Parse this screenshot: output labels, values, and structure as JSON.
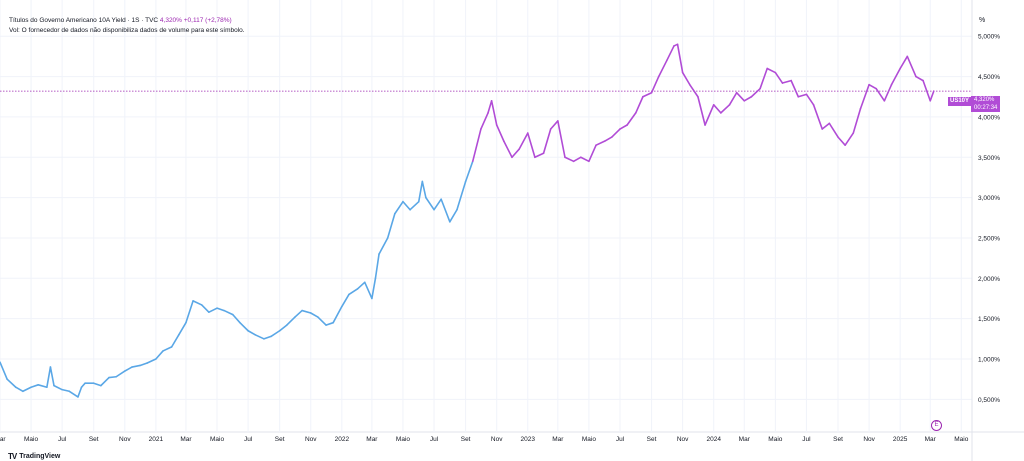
{
  "legend": {
    "title": "Títulos do Governo Americano 10A Yield · 1S · TVC",
    "price": "4,320%",
    "change": "+0,117 (+2,78%)",
    "volume_note": "Vol: O fornecedor de dados não disponibiliza dados de volume para este símbolo."
  },
  "scale_unit": "%",
  "price_tag": {
    "symbol": "US10Y",
    "value": "4,320%",
    "countdown": "00:27:34"
  },
  "branding": {
    "logo_mark": "TV",
    "name": "TradingView"
  },
  "event_icon": "E",
  "colors": {
    "line_early": "#5aa7e6",
    "line_late": "#b14cd6",
    "price_line": "#9c27b0",
    "grid": "#f0f3fa"
  },
  "chart_data": {
    "type": "line",
    "title": "Títulos do Governo Americano 10A Yield · 1S · TVC",
    "ylabel": "%",
    "ylim": [
      0.12,
      5.35
    ],
    "xlim": [
      "2020-03-01",
      "2025-05-22"
    ],
    "y_ticks": [
      "0,500%",
      "1,000%",
      "1,500%",
      "2,000%",
      "2,500%",
      "3,000%",
      "3,500%",
      "4,000%",
      "4,500%",
      "5,000%"
    ],
    "y_tick_values": [
      0.5,
      1.0,
      1.5,
      2.0,
      2.5,
      3.0,
      3.5,
      4.0,
      4.5,
      5.0
    ],
    "x_ticks": [
      {
        "label": "Mar",
        "date": "2020-03-01"
      },
      {
        "label": "Maio",
        "date": "2020-05-01"
      },
      {
        "label": "Jul",
        "date": "2020-07-01"
      },
      {
        "label": "Set",
        "date": "2020-09-01"
      },
      {
        "label": "Nov",
        "date": "2020-11-01"
      },
      {
        "label": "2021",
        "date": "2021-01-01"
      },
      {
        "label": "Mar",
        "date": "2021-03-01"
      },
      {
        "label": "Maio",
        "date": "2021-05-01"
      },
      {
        "label": "Jul",
        "date": "2021-07-01"
      },
      {
        "label": "Set",
        "date": "2021-09-01"
      },
      {
        "label": "Nov",
        "date": "2021-11-01"
      },
      {
        "label": "2022",
        "date": "2022-01-01"
      },
      {
        "label": "Mar",
        "date": "2022-03-01"
      },
      {
        "label": "Maio",
        "date": "2022-05-01"
      },
      {
        "label": "Jul",
        "date": "2022-07-01"
      },
      {
        "label": "Set",
        "date": "2022-09-01"
      },
      {
        "label": "Nov",
        "date": "2022-11-01"
      },
      {
        "label": "2023",
        "date": "2023-01-01"
      },
      {
        "label": "Mar",
        "date": "2023-03-01"
      },
      {
        "label": "Maio",
        "date": "2023-05-01"
      },
      {
        "label": "Jul",
        "date": "2023-07-01"
      },
      {
        "label": "Set",
        "date": "2023-09-01"
      },
      {
        "label": "Nov",
        "date": "2023-11-01"
      },
      {
        "label": "2024",
        "date": "2024-01-01"
      },
      {
        "label": "Mar",
        "date": "2024-03-01"
      },
      {
        "label": "Maio",
        "date": "2024-05-01"
      },
      {
        "label": "Jul",
        "date": "2024-07-01"
      },
      {
        "label": "Set",
        "date": "2024-09-01"
      },
      {
        "label": "Nov",
        "date": "2024-11-01"
      },
      {
        "label": "2025",
        "date": "2025-01-01"
      },
      {
        "label": "Mar",
        "date": "2025-03-01"
      },
      {
        "label": "Maio",
        "date": "2025-05-01"
      }
    ],
    "current_value": 4.32,
    "x": [
      "2020-03-01",
      "2020-03-15",
      "2020-04-01",
      "2020-04-15",
      "2020-05-01",
      "2020-05-15",
      "2020-06-01",
      "2020-06-08",
      "2020-06-15",
      "2020-07-01",
      "2020-07-15",
      "2020-08-01",
      "2020-08-08",
      "2020-08-15",
      "2020-09-01",
      "2020-09-15",
      "2020-10-01",
      "2020-10-15",
      "2020-11-01",
      "2020-11-15",
      "2020-12-01",
      "2020-12-15",
      "2021-01-01",
      "2021-01-15",
      "2021-02-01",
      "2021-02-15",
      "2021-03-01",
      "2021-03-15",
      "2021-04-01",
      "2021-04-15",
      "2021-05-01",
      "2021-05-15",
      "2021-06-01",
      "2021-06-15",
      "2021-07-01",
      "2021-07-15",
      "2021-08-01",
      "2021-08-15",
      "2021-09-01",
      "2021-09-15",
      "2021-10-01",
      "2021-10-15",
      "2021-11-01",
      "2021-11-15",
      "2021-12-01",
      "2021-12-15",
      "2022-01-01",
      "2022-01-15",
      "2022-02-01",
      "2022-02-15",
      "2022-03-01",
      "2022-03-08",
      "2022-03-15",
      "2022-04-01",
      "2022-04-15",
      "2022-05-01",
      "2022-05-15",
      "2022-06-01",
      "2022-06-08",
      "2022-06-15",
      "2022-07-01",
      "2022-07-15",
      "2022-08-01",
      "2022-08-15",
      "2022-09-01",
      "2022-09-15",
      "2022-10-01",
      "2022-10-15",
      "2022-10-22",
      "2022-11-01",
      "2022-11-15",
      "2022-12-01",
      "2022-12-15",
      "2023-01-01",
      "2023-01-15",
      "2023-02-01",
      "2023-02-15",
      "2023-03-01",
      "2023-03-15",
      "2023-04-01",
      "2023-04-15",
      "2023-05-01",
      "2023-05-15",
      "2023-06-01",
      "2023-06-15",
      "2023-07-01",
      "2023-07-15",
      "2023-08-01",
      "2023-08-15",
      "2023-09-01",
      "2023-09-15",
      "2023-10-01",
      "2023-10-15",
      "2023-10-22",
      "2023-11-01",
      "2023-11-15",
      "2023-12-01",
      "2023-12-15",
      "2024-01-01",
      "2024-01-15",
      "2024-02-01",
      "2024-02-15",
      "2024-03-01",
      "2024-03-15",
      "2024-04-01",
      "2024-04-15",
      "2024-05-01",
      "2024-05-15",
      "2024-06-01",
      "2024-06-15",
      "2024-07-01",
      "2024-07-15",
      "2024-08-01",
      "2024-08-15",
      "2024-09-01",
      "2024-09-15",
      "2024-10-01",
      "2024-10-15",
      "2024-11-01",
      "2024-11-15",
      "2024-12-01",
      "2024-12-15",
      "2025-01-01",
      "2025-01-15",
      "2025-02-01",
      "2025-02-15",
      "2025-03-01",
      "2025-03-08"
    ],
    "series": [
      {
        "values": [
          0.96,
          0.75,
          0.65,
          0.6,
          0.65,
          0.68,
          0.65,
          0.9,
          0.67,
          0.62,
          0.6,
          0.53,
          0.65,
          0.7,
          0.7,
          0.67,
          0.77,
          0.78,
          0.85,
          0.9,
          0.92,
          0.95,
          1.0,
          1.1,
          1.15,
          1.3,
          1.45,
          1.72,
          1.67,
          1.58,
          1.63,
          1.6,
          1.55,
          1.45,
          1.35,
          1.3,
          1.25,
          1.28,
          1.35,
          1.42,
          1.52,
          1.6,
          1.57,
          1.52,
          1.42,
          1.45,
          1.65,
          1.8,
          1.87,
          1.95,
          1.75,
          2.0,
          2.3,
          2.5,
          2.8,
          2.95,
          2.85,
          2.95,
          3.2,
          3.0,
          2.85,
          2.98,
          2.7,
          2.85,
          3.2,
          3.45,
          3.85,
          4.05,
          4.2,
          3.9,
          3.7,
          3.5,
          3.6,
          3.8,
          3.5,
          3.55,
          3.85,
          3.95,
          3.5,
          3.45,
          3.5,
          3.45,
          3.65,
          3.7,
          3.75,
          3.85,
          3.9,
          4.05,
          4.25,
          4.3,
          4.5,
          4.7,
          4.88,
          4.9,
          4.55,
          4.4,
          4.25,
          3.9,
          4.15,
          4.05,
          4.15,
          4.3,
          4.2,
          4.25,
          4.35,
          4.6,
          4.55,
          4.42,
          4.45,
          4.25,
          4.28,
          4.15,
          3.85,
          3.92,
          3.75,
          3.65,
          3.8,
          4.1,
          4.4,
          4.35,
          4.2,
          4.4,
          4.6,
          4.75,
          4.5,
          4.45,
          4.2,
          4.32
        ]
      }
    ],
    "color_split_date": "2022-09-15",
    "grid": true
  }
}
